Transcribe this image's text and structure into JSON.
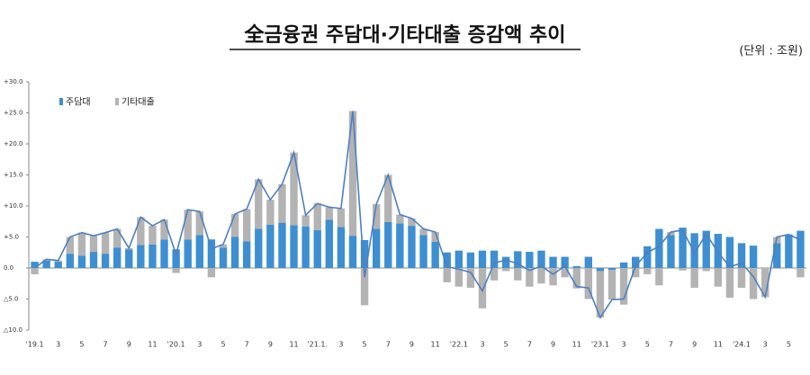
{
  "chart_data": {
    "type": "bar",
    "title": "全금융권 주담대·기타대출 증감액 추이",
    "subtitle": "(단위 : 조원)",
    "categories": [
      "'19.1",
      null,
      "3",
      null,
      "5",
      null,
      "7",
      null,
      "9",
      null,
      "11",
      null,
      "'20.1",
      null,
      "3",
      null,
      "5",
      null,
      "7",
      null,
      "9",
      null,
      "11",
      null,
      "'21.1.",
      null,
      "3",
      null,
      "5",
      null,
      "7",
      null,
      "9",
      null,
      "11",
      null,
      "'22.1",
      null,
      "3",
      null,
      "5",
      null,
      "7",
      null,
      "9",
      null,
      "11",
      null,
      "'23.1",
      null,
      "3",
      null,
      "5",
      null,
      "7",
      null,
      "9",
      null,
      "11",
      null,
      "'24.1",
      null,
      "3",
      null,
      "5",
      null
    ],
    "series": [
      {
        "name": "주담대",
        "color": "#3d8fd1",
        "values": [
          1.0,
          1.2,
          1.0,
          2.3,
          2.0,
          2.6,
          2.3,
          3.3,
          3.0,
          3.7,
          3.8,
          4.6,
          3.0,
          4.6,
          5.3,
          4.6,
          3.3,
          5.0,
          4.3,
          6.3,
          7.0,
          7.3,
          6.9,
          6.7,
          6.1,
          7.8,
          6.6,
          5.2,
          4.5,
          6.3,
          7.4,
          7.2,
          6.8,
          5.3,
          4.2,
          2.5,
          2.8,
          2.5,
          2.8,
          2.8,
          1.8,
          2.7,
          2.6,
          2.8,
          1.8,
          1.8,
          0.3,
          1.8,
          -0.5,
          -0.3,
          0.9,
          1.8,
          3.5,
          6.3,
          5.3,
          6.5,
          5.6,
          6.0,
          5.5,
          5.0,
          4.0,
          3.6,
          0.0,
          4.0,
          5.4,
          6.0
        ]
      },
      {
        "name": "기타대출",
        "color": "#b3b3b3",
        "values": [
          -1.0,
          0.2,
          0.2,
          2.7,
          3.7,
          2.6,
          3.4,
          3.0,
          0.2,
          4.5,
          3.0,
          3.2,
          -0.8,
          4.8,
          3.8,
          -1.5,
          0.5,
          3.7,
          5.2,
          8.0,
          4.0,
          6.2,
          11.7,
          1.8,
          4.3,
          2.0,
          3.0,
          20.1,
          -6.0,
          4.0,
          7.6,
          1.4,
          1.2,
          1.0,
          1.6,
          -2.3,
          -3.0,
          -3.2,
          -6.5,
          -2.0,
          -0.5,
          -2.0,
          -3.0,
          -2.5,
          -2.8,
          -1.5,
          -3.3,
          -5.0,
          -7.5,
          -4.8,
          -5.9,
          -1.5,
          -1.0,
          -2.8,
          0.5,
          -0.4,
          -3.2,
          -0.5,
          -3.0,
          -4.8,
          -3.2,
          -5.0,
          -4.7,
          1.0,
          0.0,
          -1.5
        ]
      }
    ],
    "line_color": "#4f7fc0",
    "ylim": [
      -10,
      30
    ],
    "yticks": [
      {
        "value": 30,
        "label": "+30.0"
      },
      {
        "value": 25,
        "label": "+25.0"
      },
      {
        "value": 20,
        "label": "+20.0"
      },
      {
        "value": 15,
        "label": "+15.0"
      },
      {
        "value": 10,
        "label": "+10.0"
      },
      {
        "value": 5,
        "label": "+5.0"
      },
      {
        "value": 0,
        "label": "0.0"
      },
      {
        "value": -5,
        "label": "△5.0"
      },
      {
        "value": -10,
        "label": "△10.0"
      }
    ],
    "stacked": true
  }
}
